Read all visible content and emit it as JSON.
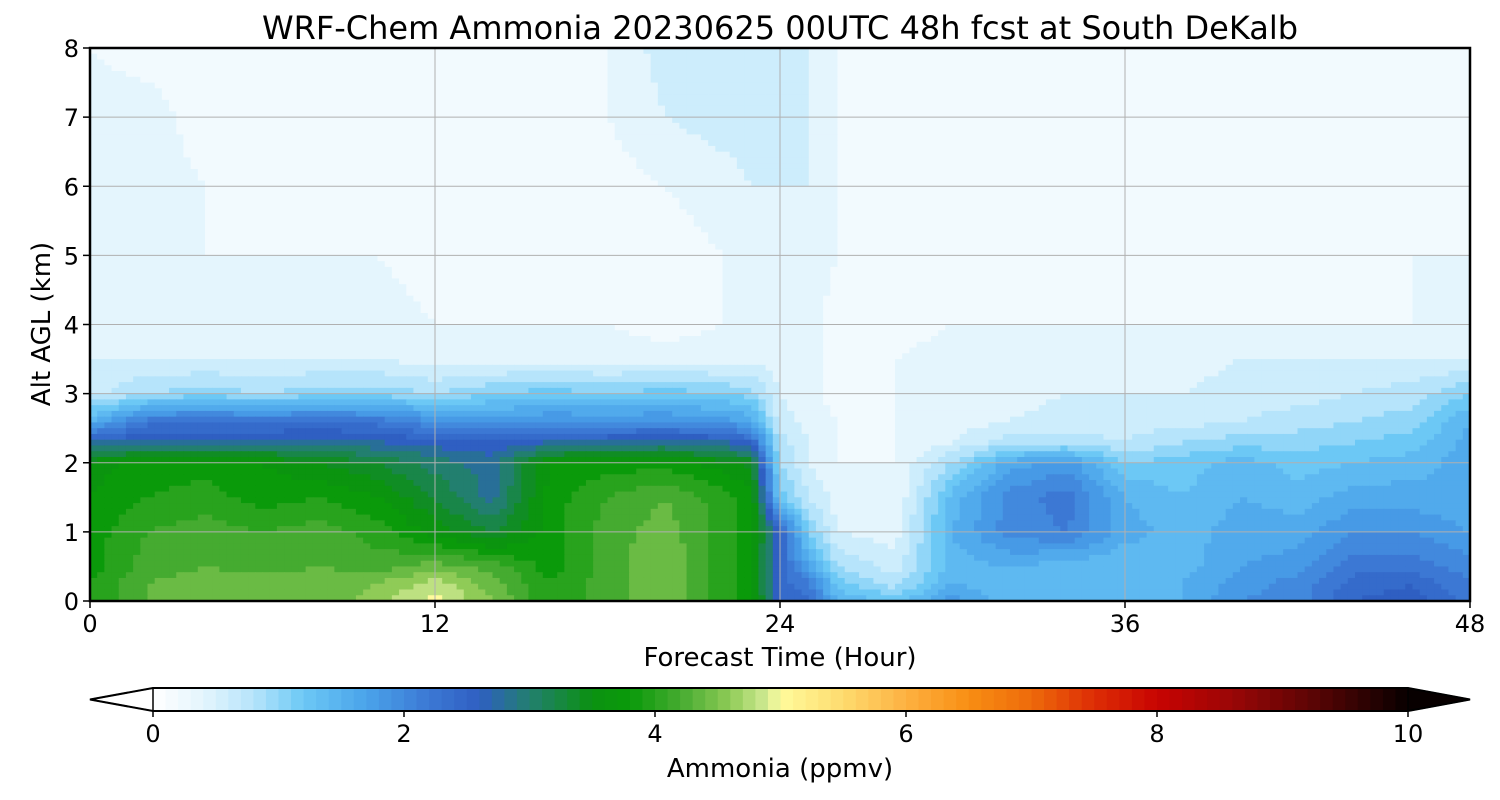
{
  "chart_data": {
    "type": "heatmap",
    "title": "WRF-Chem Ammonia  20230625 00UTC 48h fcst at South DeKalb",
    "xlabel": "Forecast Time (Hour)",
    "ylabel": "Alt AGL (km)",
    "xlim": [
      0,
      48
    ],
    "ylim": [
      0,
      8
    ],
    "x_ticks": [
      0,
      12,
      24,
      36,
      48
    ],
    "y_ticks": [
      0,
      1,
      2,
      3,
      4,
      5,
      6,
      7,
      8
    ],
    "grid": true,
    "colorbar": {
      "label": "Ammonia  (ppmv)",
      "min": 0,
      "max": 10,
      "ticks": [
        0,
        2,
        4,
        6,
        8,
        10
      ],
      "extend": "both",
      "stops": [
        {
          "v": 0.0,
          "c": "#ffffff"
        },
        {
          "v": 0.4,
          "c": "#e4f5fd"
        },
        {
          "v": 0.8,
          "c": "#b6e4fb"
        },
        {
          "v": 1.2,
          "c": "#6cc8f5"
        },
        {
          "v": 1.7,
          "c": "#4aa3ea"
        },
        {
          "v": 2.2,
          "c": "#3c78d4"
        },
        {
          "v": 2.6,
          "c": "#2f5fc2"
        },
        {
          "v": 3.0,
          "c": "#227f6f"
        },
        {
          "v": 3.5,
          "c": "#0b9111"
        },
        {
          "v": 3.8,
          "c": "#0a9a0a"
        },
        {
          "v": 4.2,
          "c": "#45ab30"
        },
        {
          "v": 4.6,
          "c": "#8fcb57"
        },
        {
          "v": 4.9,
          "c": "#d4ec96"
        },
        {
          "v": 5.0,
          "c": "#fffb9c"
        },
        {
          "v": 5.5,
          "c": "#fedb6e"
        },
        {
          "v": 6.0,
          "c": "#fdb141"
        },
        {
          "v": 6.5,
          "c": "#f88e13"
        },
        {
          "v": 7.0,
          "c": "#ee6a0b"
        },
        {
          "v": 7.5,
          "c": "#dd2d05"
        },
        {
          "v": 8.0,
          "c": "#c80402"
        },
        {
          "v": 8.6,
          "c": "#9a0606"
        },
        {
          "v": 9.2,
          "c": "#5f0505"
        },
        {
          "v": 10.0,
          "c": "#080000"
        }
      ]
    },
    "x": [
      0,
      2,
      4,
      6,
      8,
      10,
      12,
      14,
      16,
      18,
      20,
      22,
      23,
      24,
      25,
      26,
      28,
      30,
      32,
      34,
      36,
      38,
      40,
      42,
      44,
      46,
      48
    ],
    "y": [
      0,
      0.25,
      0.5,
      1,
      1.5,
      2,
      2.3,
      2.6,
      3,
      3.5,
      4,
      5,
      6,
      7,
      8
    ],
    "z": [
      [
        3.9,
        4.3,
        4.5,
        4.4,
        4.3,
        4.6,
        5.0,
        4.5,
        3.9,
        4.2,
        4.5,
        4.0,
        3.8,
        2.5,
        2.3,
        1.5,
        1.2,
        1.8,
        1.4,
        1.3,
        1.3,
        1.5,
        1.9,
        2.0,
        2.5,
        2.6,
        2.2
      ],
      [
        3.9,
        4.3,
        4.4,
        4.4,
        4.4,
        4.5,
        4.8,
        4.4,
        3.9,
        4.2,
        4.5,
        4.0,
        3.8,
        2.4,
        2.2,
        1.2,
        0.8,
        1.5,
        1.3,
        1.3,
        1.3,
        1.5,
        1.8,
        2.0,
        2.4,
        2.5,
        2.1
      ],
      [
        3.8,
        4.2,
        4.3,
        4.2,
        4.3,
        4.2,
        4.4,
        4.2,
        3.8,
        4.2,
        4.5,
        4.0,
        3.8,
        2.4,
        1.7,
        0.9,
        0.6,
        1.4,
        1.5,
        1.4,
        1.3,
        1.4,
        1.7,
        1.8,
        2.2,
        2.2,
        2.0
      ],
      [
        3.8,
        4.1,
        4.2,
        4.1,
        4.2,
        4.0,
        3.6,
        3.3,
        3.8,
        4.2,
        4.4,
        4.0,
        3.8,
        2.5,
        1.1,
        0.5,
        0.4,
        1.5,
        2.0,
        2.1,
        1.6,
        1.4,
        1.6,
        1.6,
        1.9,
        1.9,
        1.7
      ],
      [
        3.7,
        3.9,
        4.0,
        3.8,
        3.9,
        3.7,
        3.3,
        2.8,
        3.8,
        4.1,
        4.3,
        4.0,
        3.8,
        1.2,
        0.7,
        0.4,
        0.3,
        1.4,
        2.0,
        2.2,
        1.5,
        1.3,
        1.5,
        1.4,
        1.6,
        1.6,
        1.5
      ],
      [
        3.6,
        3.8,
        3.8,
        3.7,
        3.5,
        3.3,
        3.0,
        2.8,
        3.7,
        3.8,
        3.8,
        3.6,
        3.4,
        0.9,
        0.5,
        0.3,
        0.3,
        0.9,
        1.6,
        1.8,
        1.1,
        1.2,
        1.4,
        1.2,
        1.3,
        1.4,
        1.6
      ],
      [
        2.7,
        2.7,
        2.7,
        2.8,
        2.8,
        2.7,
        2.6,
        2.5,
        2.7,
        2.7,
        2.8,
        2.7,
        2.5,
        0.8,
        0.5,
        0.3,
        0.3,
        0.5,
        0.8,
        0.8,
        0.7,
        0.9,
        1.0,
        1.0,
        1.1,
        1.2,
        1.6
      ],
      [
        1.5,
        2.2,
        2.3,
        2.2,
        2.3,
        2.2,
        1.9,
        1.8,
        1.9,
        1.9,
        1.9,
        1.8,
        1.6,
        0.6,
        0.4,
        0.3,
        0.3,
        0.4,
        0.5,
        0.6,
        0.6,
        0.6,
        0.7,
        0.8,
        0.9,
        1.0,
        1.5
      ],
      [
        0.6,
        0.9,
        1.0,
        0.9,
        1.0,
        1.0,
        0.9,
        1.1,
        1.2,
        1.1,
        1.2,
        1.1,
        1.0,
        0.5,
        0.4,
        0.2,
        0.3,
        0.4,
        0.4,
        0.5,
        0.5,
        0.5,
        0.6,
        0.6,
        0.7,
        0.8,
        1.1
      ],
      [
        0.5,
        0.5,
        0.5,
        0.5,
        0.5,
        0.5,
        0.4,
        0.4,
        0.4,
        0.4,
        0.4,
        0.4,
        0.4,
        0.4,
        0.4,
        0.2,
        0.3,
        0.4,
        0.4,
        0.4,
        0.4,
        0.4,
        0.5,
        0.5,
        0.5,
        0.5,
        0.5
      ],
      [
        0.4,
        0.4,
        0.5,
        0.4,
        0.4,
        0.4,
        0.3,
        0.3,
        0.3,
        0.3,
        0.2,
        0.3,
        0.4,
        0.5,
        0.4,
        0.2,
        0.2,
        0.3,
        0.3,
        0.3,
        0.3,
        0.3,
        0.3,
        0.3,
        0.3,
        0.3,
        0.4
      ],
      [
        0.5,
        0.3,
        0.3,
        0.3,
        0.3,
        0.3,
        0.2,
        0.2,
        0.2,
        0.2,
        0.2,
        0.3,
        0.4,
        0.5,
        0.4,
        0.3,
        0.2,
        0.2,
        0.2,
        0.2,
        0.2,
        0.2,
        0.2,
        0.2,
        0.2,
        0.3,
        0.3
      ],
      [
        0.5,
        0.4,
        0.3,
        0.2,
        0.2,
        0.2,
        0.2,
        0.1,
        0.1,
        0.2,
        0.3,
        0.4,
        0.5,
        0.5,
        0.5,
        0.3,
        0.2,
        0.2,
        0.2,
        0.2,
        0.2,
        0.2,
        0.2,
        0.2,
        0.2,
        0.2,
        0.2
      ],
      [
        0.4,
        0.4,
        0.2,
        0.1,
        0.1,
        0.1,
        0.1,
        0.1,
        0.1,
        0.3,
        0.5,
        0.6,
        0.6,
        0.6,
        0.5,
        0.3,
        0.3,
        0.2,
        0.2,
        0.2,
        0.1,
        0.1,
        0.1,
        0.1,
        0.1,
        0.1,
        0.1
      ],
      [
        0.3,
        0.2,
        0.2,
        0.1,
        0.2,
        0.3,
        0.2,
        0.1,
        0.1,
        0.3,
        0.6,
        0.7,
        0.6,
        0.6,
        0.5,
        0.3,
        0.2,
        0.2,
        0.2,
        0.2,
        0.1,
        0.1,
        0.1,
        0.1,
        0.1,
        0.1,
        0.1
      ]
    ]
  }
}
